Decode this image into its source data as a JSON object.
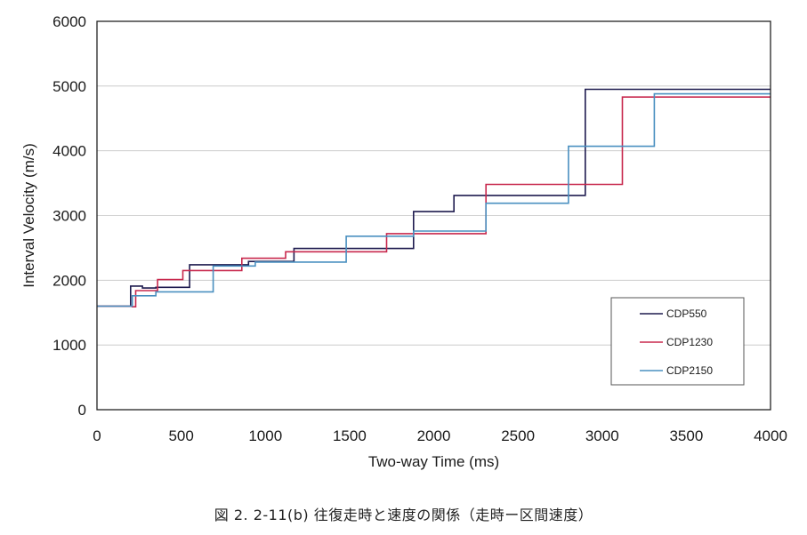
{
  "chart_data": {
    "type": "line",
    "title": "",
    "xlabel": "Two-way Time (ms)",
    "ylabel": "Interval Velocity (m/s)",
    "xlim": [
      0,
      4000
    ],
    "ylim": [
      0,
      6000
    ],
    "xticks": [
      0,
      500,
      1000,
      1500,
      2000,
      2500,
      3000,
      3500,
      4000
    ],
    "yticks": [
      0,
      1000,
      2000,
      3000,
      4000,
      5000,
      6000
    ],
    "grid": "horizontal",
    "legend_position": "bottom-right",
    "step": true,
    "series": [
      {
        "name": "CDP550",
        "color": "#1e1b4f",
        "x": [
          0,
          200,
          200,
          270,
          270,
          350,
          350,
          550,
          550,
          900,
          900,
          1170,
          1170,
          1880,
          1880,
          2120,
          2120,
          2900,
          2900,
          4000
        ],
        "y": [
          1600,
          1600,
          1910,
          1910,
          1880,
          1880,
          1890,
          1890,
          2240,
          2240,
          2290,
          2290,
          2490,
          2490,
          3060,
          3060,
          3310,
          3310,
          4950,
          4950
        ]
      },
      {
        "name": "CDP1230",
        "color": "#c8284d",
        "x": [
          0,
          210,
          210,
          230,
          230,
          360,
          360,
          510,
          510,
          860,
          860,
          1120,
          1120,
          1720,
          1720,
          2310,
          2310,
          3120,
          3120,
          4000
        ],
        "y": [
          1600,
          1600,
          1590,
          1590,
          1840,
          1840,
          2010,
          2010,
          2150,
          2150,
          2340,
          2340,
          2440,
          2440,
          2720,
          2720,
          3480,
          3480,
          4830,
          4830
        ]
      },
      {
        "name": "CDP2150",
        "color": "#4a90c0",
        "x": [
          0,
          210,
          210,
          350,
          350,
          690,
          690,
          940,
          940,
          1480,
          1480,
          1880,
          1880,
          2310,
          2310,
          2800,
          2800,
          3310,
          3310,
          4000
        ],
        "y": [
          1600,
          1600,
          1760,
          1760,
          1820,
          1820,
          2220,
          2220,
          2280,
          2280,
          2680,
          2680,
          2760,
          2760,
          3190,
          3190,
          4070,
          4070,
          4880,
          4880
        ]
      }
    ]
  },
  "caption": "図 2. 2-11(b)  往復走時と速度の関係（走時ー区間速度）"
}
